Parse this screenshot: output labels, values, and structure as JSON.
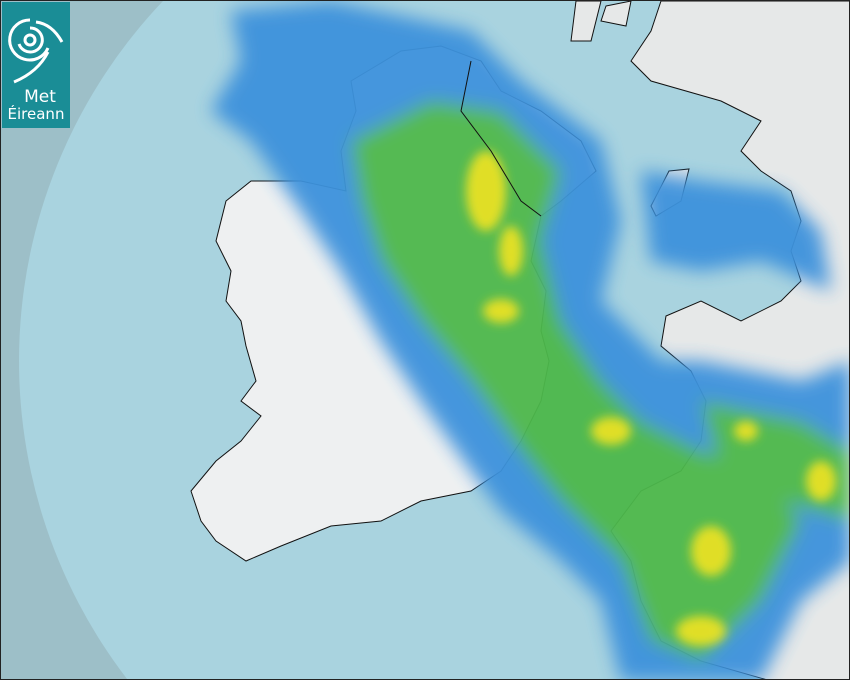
{
  "logo": {
    "line1": "Met",
    "line2": "Éireann"
  },
  "colors": {
    "outside_radar": "#9dbfc8",
    "sea": "#a9d3df",
    "land": "#eef0f1",
    "rain_light": "#3d92dc",
    "rain_moderate": "#4db84c",
    "rain_heavy": "#f0e322",
    "logo_bg": "#1a8d96"
  },
  "icons": {
    "logo": "met-eireann-swirl-icon"
  }
}
